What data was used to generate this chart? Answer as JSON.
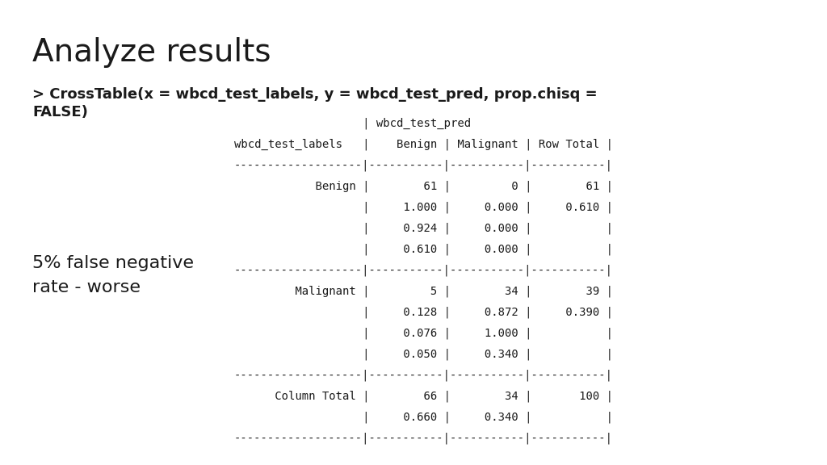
{
  "title": "Analyze results",
  "command_line1": "> CrossTable(x = wbcd_test_labels, y = wbcd_test_pred, prop.chisq =",
  "command_line2": "FALSE)",
  "annotation_line1": "5% false negative",
  "annotation_line2": "rate - worse",
  "background_color": "#ffffff",
  "text_color": "#1a1a1a",
  "table_lines": [
    "                   | wbcd_test_pred",
    "wbcd_test_labels   |    Benign | Malignant | Row Total |",
    "-------------------|-----------|-----------|-----------|",
    "            Benign |        61 |         0 |        61 |",
    "                   |     1.000 |     0.000 |     0.610 |",
    "                   |     0.924 |     0.000 |           |",
    "                   |     0.610 |     0.000 |           |",
    "-------------------|-----------|-----------|-----------|",
    "         Malignant |         5 |        34 |        39 |",
    "                   |     0.128 |     0.872 |     0.390 |",
    "                   |     0.076 |     1.000 |           |",
    "                   |     0.050 |     0.340 |           |",
    "-------------------|-----------|-----------|-----------|",
    "      Column Total |        66 |        34 |       100 |",
    "                   |     0.660 |     0.340 |           |",
    "-------------------|-----------|-----------|-----------|"
  ],
  "title_fontsize": 28,
  "command_fontsize": 13,
  "table_fontsize": 10,
  "annotation_fontsize": 16
}
